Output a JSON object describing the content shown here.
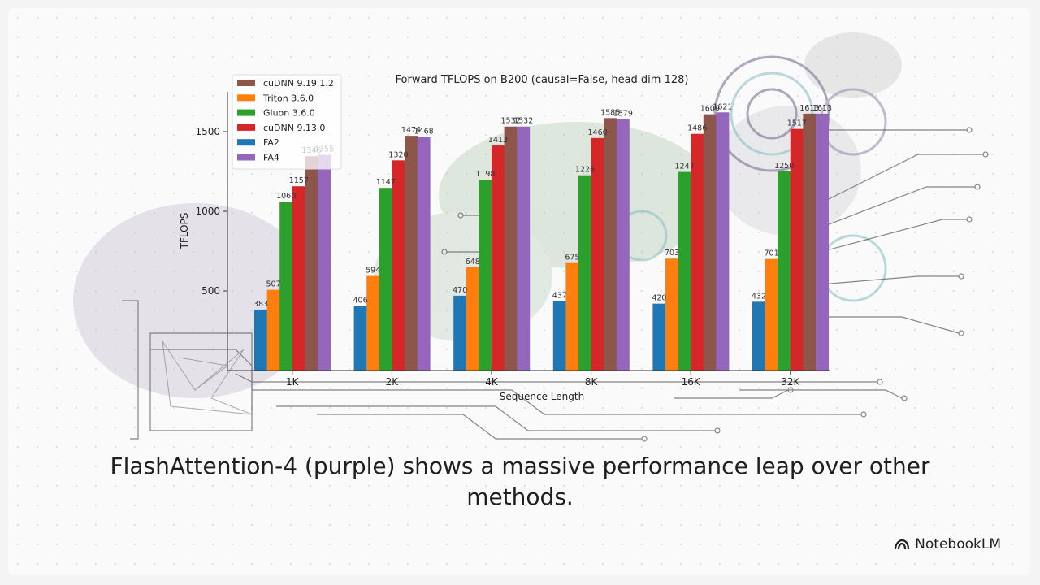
{
  "caption": "FlashAttention-4 (purple) shows a massive performance leap over other methods.",
  "brand": {
    "label": "NotebookLM",
    "icon": "notebooklm-logo-icon"
  },
  "colors": {
    "FA2": "#1f77b4",
    "Triton 3.6.0": "#ff7f0e",
    "Gluon 3.6.0": "#2ca02c",
    "cuDNN 9.13.0": "#d62728",
    "cuDNN 9.19.1.2": "#8c564b",
    "FA4": "#9467bd"
  },
  "chart_data": {
    "type": "bar",
    "title": "Forward TFLOPS on B200 (causal=False, head dim 128)",
    "xlabel": "Sequence Length",
    "ylabel": "TFLOPS",
    "categories": [
      "1K",
      "2K",
      "4K",
      "8K",
      "16K",
      "32K"
    ],
    "ylim": [
      0,
      1750
    ],
    "yticks": [
      500,
      1000,
      1500
    ],
    "grid": false,
    "legend_position": "top-left",
    "legend_order": [
      "cuDNN 9.19.1.2",
      "Triton 3.6.0",
      "Gluon 3.6.0",
      "cuDNN 9.13.0",
      "FA2",
      "FA4"
    ],
    "series": [
      {
        "name": "FA2",
        "values": [
          383,
          406,
          470,
          437,
          420,
          432
        ]
      },
      {
        "name": "Triton 3.6.0",
        "values": [
          507,
          594,
          648,
          675,
          703,
          701
        ]
      },
      {
        "name": "Gluon 3.6.0",
        "values": [
          1060,
          1147,
          1198,
          1226,
          1247,
          1250
        ]
      },
      {
        "name": "cuDNN 9.13.0",
        "values": [
          1157,
          1320,
          1413,
          1460,
          1486,
          1517
        ]
      },
      {
        "name": "cuDNN 9.19.1.2",
        "values": [
          1346,
          1474,
          1532,
          1585,
          1609,
          1613
        ]
      },
      {
        "name": "FA4",
        "values": [
          1355,
          1468,
          1532,
          1579,
          1621,
          1613
        ]
      }
    ]
  }
}
